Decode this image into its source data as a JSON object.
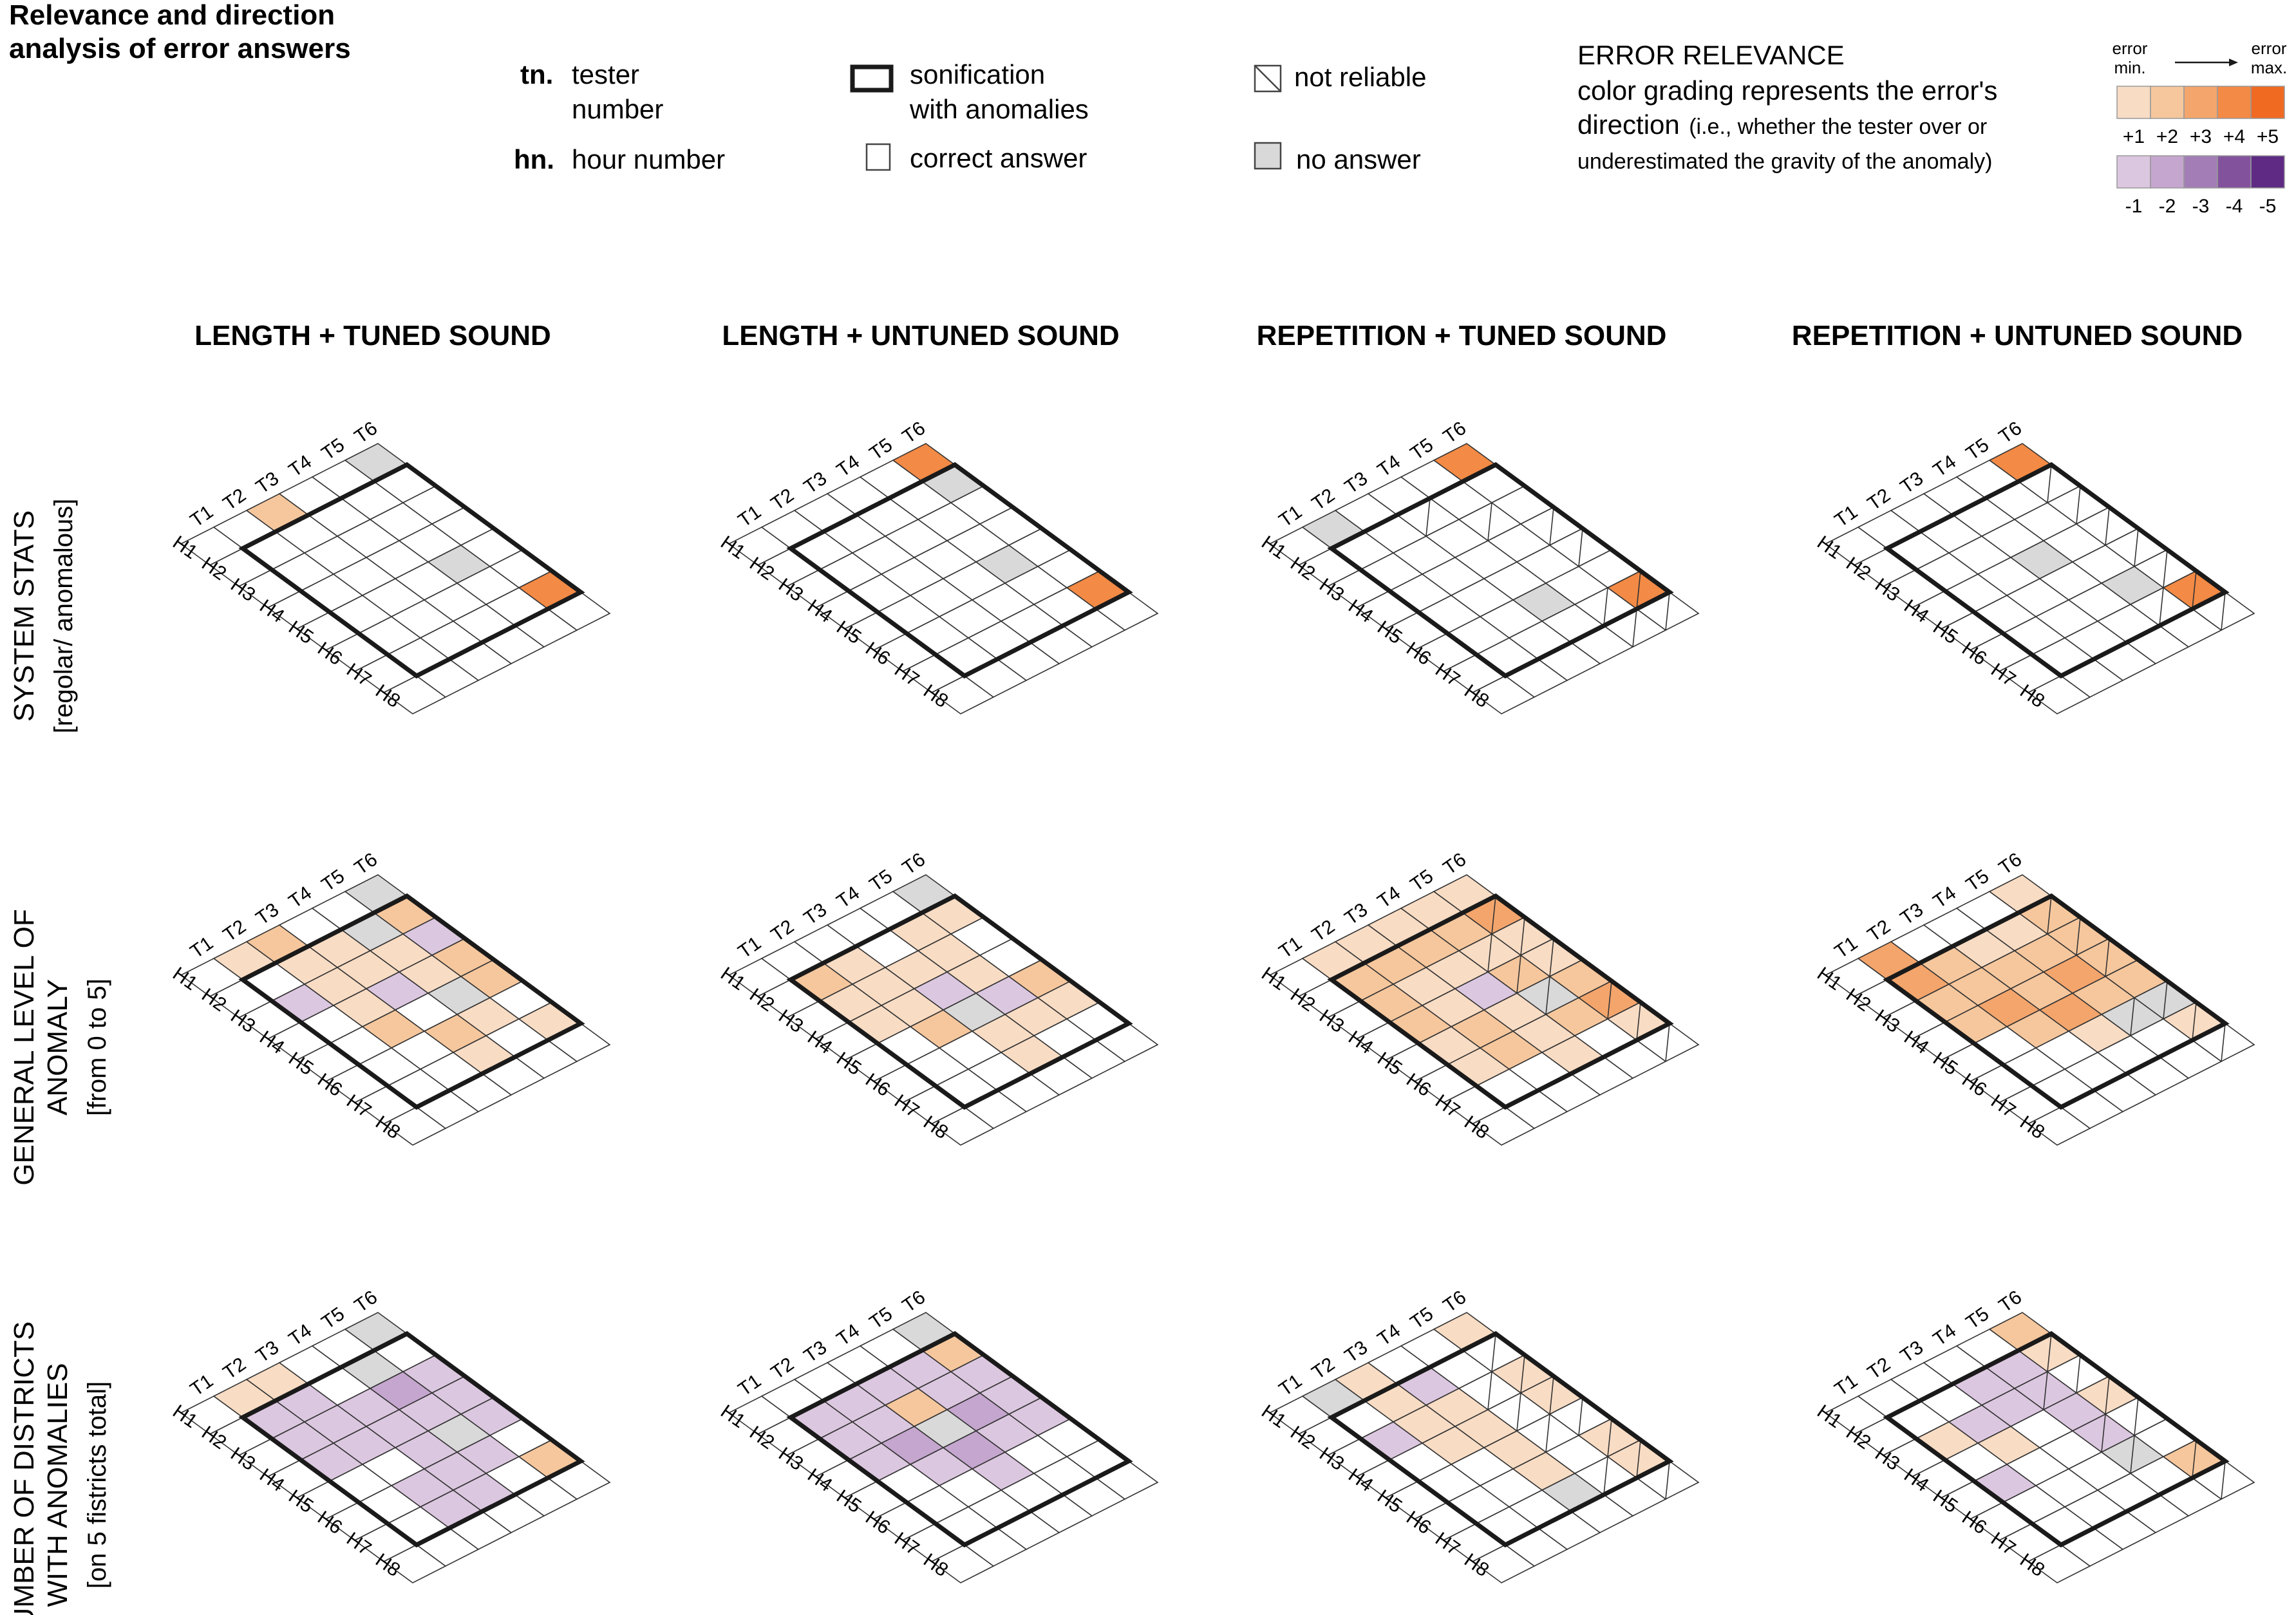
{
  "title": "Relevance and direction\nanalysis of error answers",
  "legend": {
    "tn_abbr": "tn.",
    "tn_text": "tester\nnumber",
    "hn_abbr": "hn.",
    "hn_text": "hour number",
    "sonification_text": "sonification\nwith anomalies",
    "correct_text": "correct answer",
    "not_reliable_text": "not reliable",
    "no_answer_text": "no answer",
    "relevance_title": "ERROR RELEVANCE",
    "relevance_line1": "color grading represents the error's",
    "relevance_line2_main": "direction",
    "relevance_line2_small": "(i.e., whether the tester over or",
    "relevance_line3": "underestimated the gravity of the anomaly)",
    "scale_min": "error\nmin.",
    "scale_max": "error\nmax.",
    "arrow": "→",
    "positive_labels": [
      "+1",
      "+2",
      "+3",
      "+4",
      "+5"
    ],
    "negative_labels": [
      "-1",
      "-2",
      "-3",
      "-4",
      "-5"
    ]
  },
  "colors": {
    "pos": [
      "#f8dcc4",
      "#f6c79d",
      "#f4a56c",
      "#f38a45",
      "#f06a22"
    ],
    "neg": [
      "#dcc7e0",
      "#c5a6cf",
      "#a37eb6",
      "#83529d",
      "#5e2a84"
    ],
    "no_answer": "#d9d9d9",
    "grid": "#333333"
  },
  "chart_data": {
    "type": "heatmap",
    "x_axis_labels": [
      "T1",
      "T2",
      "T3",
      "T4",
      "T5",
      "T6"
    ],
    "y_axis_labels": [
      "H1",
      "H2",
      "H3",
      "H4",
      "H5",
      "H6",
      "H7",
      "H8"
    ],
    "encoding": "value = signed error relevance (-5..+5, 0 = correct answer); nr = not reliable; na = no answer; sonification_with_anomalies marks the bold-outlined testers (T2-T6) and hours (H2-H7)",
    "sonification_with_anomalies": {
      "testers": [
        "T2",
        "T3",
        "T4",
        "T5",
        "T6"
      ],
      "hours": [
        "H2",
        "H3",
        "H4",
        "H5",
        "H6",
        "H7"
      ]
    },
    "columns": [
      "LENGTH + TUNED SOUND",
      "LENGTH + UNTUNED SOUND",
      "REPETITION + TUNED SOUND",
      "REPETITION + UNTUNED SOUND"
    ],
    "rows": [
      {
        "label": "SYSTEM STATS",
        "sub": "[regolar/ anomalous]"
      },
      {
        "label": "GENERAL LEVEL OF\nANOMALY",
        "sub": "[from 0 to 5]"
      },
      {
        "label": "NUMBER OF DISTRICTS\nWITH ANOMALIES",
        "sub": "[on 5 fistricts total]"
      }
    ],
    "panels": [
      [
        {
          "values": [
            [
              0,
              0,
              0,
              0,
              0,
              0,
              0,
              0
            ],
            [
              0,
              0,
              0,
              0,
              0,
              0,
              0,
              0
            ],
            [
              2,
              0,
              0,
              0,
              0,
              0,
              0,
              0
            ],
            [
              0,
              0,
              0,
              0,
              0,
              0,
              0,
              0
            ],
            [
              0,
              0,
              0,
              0,
              "na",
              0,
              0,
              0
            ],
            [
              "na",
              0,
              0,
              0,
              0,
              0,
              4,
              0
            ]
          ],
          "nr": []
        },
        {
          "values": [
            [
              0,
              0,
              0,
              0,
              0,
              0,
              0,
              0
            ],
            [
              1,
              0,
              -1,
              0,
              0,
              0,
              0,
              0
            ],
            [
              2,
              1,
              1,
              1,
              2,
              0,
              0,
              0
            ],
            [
              0,
              1,
              1,
              -1,
              0,
              2,
              1,
              0
            ],
            [
              0,
              "na",
              1,
              1,
              "na",
              1,
              0,
              0
            ],
            [
              "na",
              2,
              -1,
              2,
              2,
              0,
              1,
              0
            ]
          ],
          "nr": []
        },
        {
          "values": [
            [
              0,
              0,
              0,
              0,
              0,
              0,
              0,
              0
            ],
            [
              1,
              -1,
              -1,
              -1,
              0,
              0,
              0,
              0
            ],
            [
              1,
              -1,
              -1,
              -1,
              0,
              -1,
              -1,
              0
            ],
            [
              0,
              0,
              -1,
              -1,
              -1,
              -1,
              -1,
              0
            ],
            [
              0,
              "na",
              -2,
              -1,
              "na",
              -1,
              0,
              0
            ],
            [
              "na",
              0,
              -1,
              -1,
              -1,
              0,
              2,
              0
            ]
          ],
          "nr": []
        }
      ],
      [
        {
          "values": [
            [
              0,
              0,
              0,
              0,
              0,
              0,
              0,
              0
            ],
            [
              0,
              0,
              0,
              0,
              0,
              0,
              0,
              0
            ],
            [
              0,
              0,
              0,
              0,
              0,
              0,
              0,
              0
            ],
            [
              0,
              0,
              0,
              0,
              0,
              0,
              0,
              0
            ],
            [
              0,
              0,
              0,
              0,
              "na",
              0,
              0,
              0
            ],
            [
              4,
              "na",
              0,
              0,
              0,
              0,
              4,
              0
            ]
          ],
          "nr": []
        },
        {
          "values": [
            [
              0,
              0,
              0,
              0,
              0,
              0,
              0,
              0
            ],
            [
              0,
              2,
              1,
              1,
              0,
              0,
              0,
              0
            ],
            [
              0,
              1,
              1,
              1,
              2,
              0,
              0,
              0
            ],
            [
              0,
              0,
              1,
              -1,
              "na",
              1,
              1,
              0
            ],
            [
              0,
              1,
              1,
              1,
              -1,
              1,
              0,
              0
            ],
            [
              "na",
              1,
              0,
              0,
              2,
              1,
              0,
              0
            ]
          ],
          "nr": []
        },
        {
          "values": [
            [
              0,
              0,
              0,
              0,
              0,
              0,
              0,
              0
            ],
            [
              0,
              -1,
              -1,
              -1,
              0,
              0,
              0,
              0
            ],
            [
              0,
              -1,
              -1,
              -2,
              -1,
              0,
              0,
              0
            ],
            [
              0,
              -1,
              2,
              "na",
              -2,
              -1,
              0,
              0
            ],
            [
              0,
              -1,
              -1,
              -2,
              -1,
              0,
              0,
              0
            ],
            [
              "na",
              2,
              -1,
              -1,
              -1,
              0,
              0,
              0
            ]
          ],
          "nr": []
        }
      ],
      [
        {
          "values": [
            [
              0,
              0,
              0,
              0,
              0,
              0,
              0,
              0
            ],
            [
              "na",
              0,
              0,
              0,
              0,
              0,
              0,
              0
            ],
            [
              0,
              0,
              0,
              0,
              0,
              0,
              0,
              0
            ],
            [
              0,
              0,
              0,
              0,
              0,
              "na",
              0,
              0
            ],
            [
              0,
              0,
              0,
              0,
              0,
              0,
              0,
              0
            ],
            [
              4,
              0,
              0,
              0,
              0,
              0,
              4,
              0
            ]
          ],
          "nr": [
            [
              3,
              1
            ],
            [
              4,
              2
            ],
            [
              5,
              3
            ],
            [
              5,
              4
            ],
            [
              4,
              6
            ],
            [
              5,
              6
            ],
            [
              4,
              7
            ],
            [
              5,
              7
            ]
          ]
        },
        {
          "values": [
            [
              0,
              0,
              0,
              0,
              0,
              0,
              0,
              0
            ],
            [
              1,
              2,
              2,
              2,
              1,
              1,
              0,
              0
            ],
            [
              1,
              2,
              1,
              1,
              2,
              2,
              0,
              0
            ],
            [
              1,
              2,
              1,
              -1,
              1,
              1,
              1,
              0
            ],
            [
              1,
              2,
              1,
              2,
              "na",
              2,
              0,
              0
            ],
            [
              1,
              3,
              1,
              1,
              2,
              3,
              1,
              0
            ]
          ],
          "nr": [
            [
              5,
              1
            ],
            [
              4,
              2
            ],
            [
              5,
              2
            ],
            [
              4,
              3
            ],
            [
              5,
              3
            ],
            [
              4,
              4
            ],
            [
              5,
              5
            ],
            [
              5,
              6
            ],
            [
              5,
              7
            ]
          ]
        },
        {
          "values": [
            [
              0,
              0,
              0,
              0,
              0,
              0,
              0,
              0
            ],
            [
              "na",
              0,
              -1,
              0,
              0,
              0,
              0,
              0
            ],
            [
              1,
              1,
              1,
              1,
              0,
              0,
              0,
              0
            ],
            [
              0,
              -1,
              1,
              1,
              1,
              1,
              "na",
              0
            ],
            [
              0,
              0,
              0,
              0,
              0,
              0,
              0,
              0
            ],
            [
              1,
              0,
              1,
              1,
              0,
              1,
              1,
              0
            ]
          ],
          "nr": [
            [
              5,
              1
            ],
            [
              4,
              2
            ],
            [
              5,
              2
            ],
            [
              4,
              3
            ],
            [
              5,
              3
            ],
            [
              4,
              4
            ],
            [
              5,
              4
            ],
            [
              5,
              5
            ],
            [
              4,
              6
            ],
            [
              5,
              6
            ],
            [
              5,
              7
            ]
          ]
        }
      ],
      [
        {
          "values": [
            [
              0,
              0,
              0,
              0,
              0,
              0,
              0,
              0
            ],
            [
              0,
              0,
              0,
              0,
              0,
              0,
              0,
              0
            ],
            [
              0,
              0,
              0,
              0,
              0,
              0,
              0,
              0
            ],
            [
              0,
              0,
              0,
              "na",
              0,
              0,
              0,
              0
            ],
            [
              0,
              0,
              0,
              0,
              0,
              "na",
              0,
              0
            ],
            [
              4,
              0,
              0,
              0,
              0,
              0,
              4,
              0
            ]
          ],
          "nr": [
            [
              5,
              1
            ],
            [
              5,
              2
            ],
            [
              5,
              3
            ],
            [
              5,
              4
            ],
            [
              5,
              5
            ],
            [
              4,
              6
            ],
            [
              5,
              6
            ],
            [
              5,
              7
            ]
          ]
        },
        {
          "values": [
            [
              0,
              0,
              0,
              0,
              0,
              0,
              0,
              0
            ],
            [
              3,
              3,
              2,
              2,
              0,
              0,
              0,
              0
            ],
            [
              0,
              2,
              2,
              3,
              2,
              0,
              0,
              0
            ],
            [
              0,
              1,
              2,
              2,
              3,
              1,
              0,
              0
            ],
            [
              0,
              1,
              2,
              3,
              2,
              "na",
              0,
              0
            ],
            [
              1,
              2,
              2,
              2,
              2,
              "na",
              1,
              0
            ]
          ],
          "nr": [
            [
              5,
              1
            ],
            [
              5,
              2
            ],
            [
              5,
              3
            ],
            [
              4,
              5
            ],
            [
              5,
              5
            ],
            [
              5,
              6
            ],
            [
              5,
              7
            ]
          ]
        },
        {
          "values": [
            [
              0,
              0,
              0,
              0,
              0,
              0,
              0,
              0
            ],
            [
              0,
              0,
              1,
              0,
              -1,
              0,
              0,
              0
            ],
            [
              0,
              0,
              -1,
              1,
              0,
              0,
              0,
              0
            ],
            [
              0,
              -1,
              -1,
              0,
              0,
              0,
              0,
              0
            ],
            [
              0,
              -1,
              -1,
              -1,
              -1,
              "na",
              0,
              0
            ],
            [
              2,
              1,
              0,
              1,
              0,
              0,
              2,
              0
            ]
          ],
          "nr": [
            [
              5,
              1
            ],
            [
              4,
              2
            ],
            [
              5,
              2
            ],
            [
              5,
              3
            ],
            [
              4,
              4
            ],
            [
              5,
              4
            ],
            [
              4,
              5
            ],
            [
              5,
              6
            ],
            [
              5,
              7
            ]
          ]
        }
      ]
    ]
  }
}
